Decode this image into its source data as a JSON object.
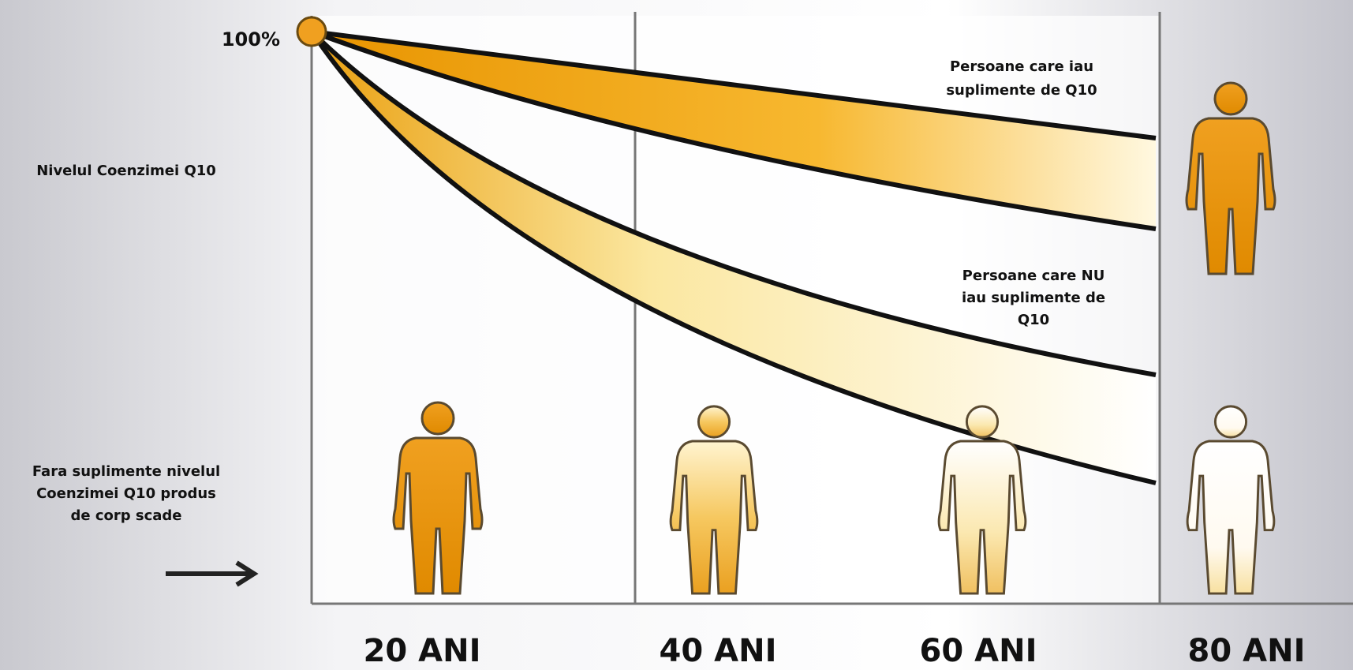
{
  "level_label": "100%",
  "axis_title": "Nivelul Coenzimei Q10",
  "note": [
    "Fara suplimente nivelul",
    "Coenzimei Q10 produs",
    "de corp scade"
  ],
  "series_labels": [
    [
      "Persoane care iau",
      "suplimente de Q10"
    ],
    [
      "Persoane care NU",
      "iau suplimente de",
      "Q10"
    ]
  ],
  "age_labels": [
    "20 ANI",
    "40 ANI",
    "60 ANI",
    "80 ANI"
  ]
}
